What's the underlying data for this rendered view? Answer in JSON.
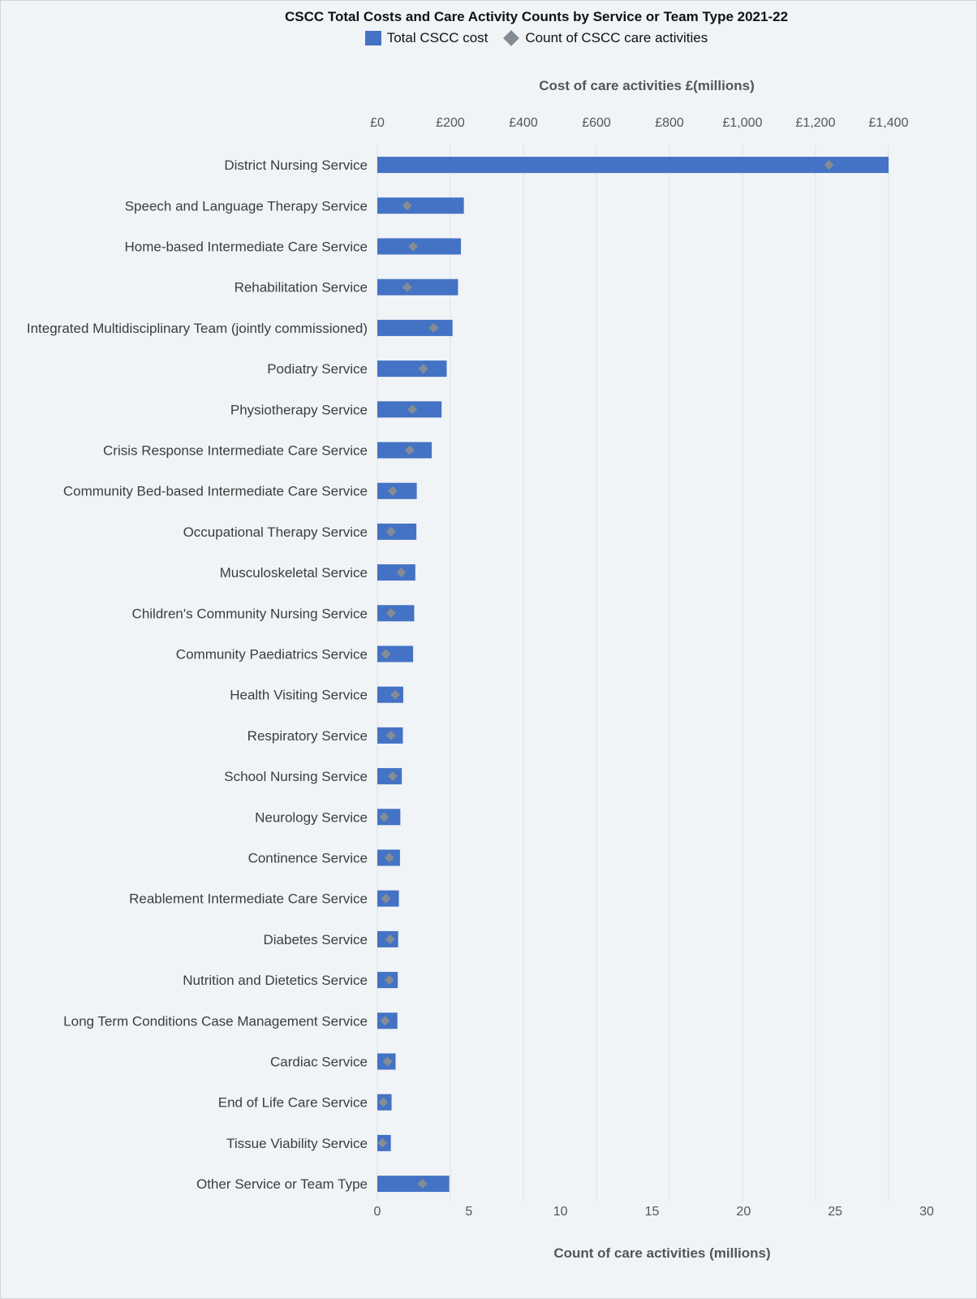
{
  "chart_data": {
    "type": "bar",
    "orientation": "horizontal",
    "title": "CSCC Total Costs and Care Activity Counts by Service or Team Type 2021-22",
    "legend": {
      "position": "top",
      "entries": [
        "Total CSCC cost",
        "Count of CSCC care activities"
      ]
    },
    "x_top": {
      "label": "Cost of care activities £(millions)",
      "ticks": [
        "£0",
        "£200",
        "£400",
        "£600",
        "£800",
        "£1,000",
        "£1,200",
        "£1,400"
      ],
      "range": [
        0,
        1400
      ]
    },
    "x_bottom": {
      "label": "Count of care activities (millions)",
      "ticks": [
        "0",
        "5",
        "10",
        "15",
        "20",
        "25",
        "30"
      ],
      "range": [
        0,
        30
      ]
    },
    "grid": true,
    "categories": [
      "District Nursing Service",
      "Speech and Language Therapy Service",
      "Home-based Intermediate Care Service",
      "Rehabilitation Service",
      "Integrated Multidisciplinary Team (jointly commissioned)",
      "Podiatry Service",
      "Physiotherapy Service",
      "Crisis Response Intermediate Care Service",
      "Community Bed-based Intermediate Care Service",
      "Occupational Therapy Service",
      "Musculoskeletal Service",
      "Children's Community Nursing Service",
      "Community Paediatrics Service",
      "Health Visiting Service",
      "Respiratory Service",
      "School Nursing Service",
      "Neurology Service",
      "Continence Service",
      "Reablement Intermediate Care Service",
      "Diabetes Service",
      "Nutrition and Dietetics Service",
      "Long Term Conditions Case Management Service",
      "Cardiac Service",
      "End of Life Care Service",
      "Tissue Viability Service",
      "Other Service or Team Type"
    ],
    "series": [
      {
        "name": "Total CSCC cost",
        "type": "bar",
        "axis": "top",
        "color": "#4472c4",
        "values": [
          1400,
          237,
          229,
          221,
          206,
          190,
          176,
          149,
          108,
          107,
          104,
          101,
          98,
          71,
          70,
          67,
          63,
          62,
          59,
          57,
          56,
          55,
          50,
          39,
          37,
          197
        ]
      },
      {
        "name": "Count of CSCC care activities",
        "type": "marker",
        "axis": "bottom",
        "color": "#848c94",
        "values": [
          26.5,
          1.75,
          2.1,
          1.75,
          3.3,
          2.7,
          2.05,
          1.9,
          0.9,
          0.8,
          1.4,
          0.8,
          0.5,
          1.05,
          0.8,
          0.9,
          0.4,
          0.7,
          0.5,
          0.75,
          0.7,
          0.45,
          0.6,
          0.35,
          0.3,
          2.65
        ]
      }
    ]
  }
}
